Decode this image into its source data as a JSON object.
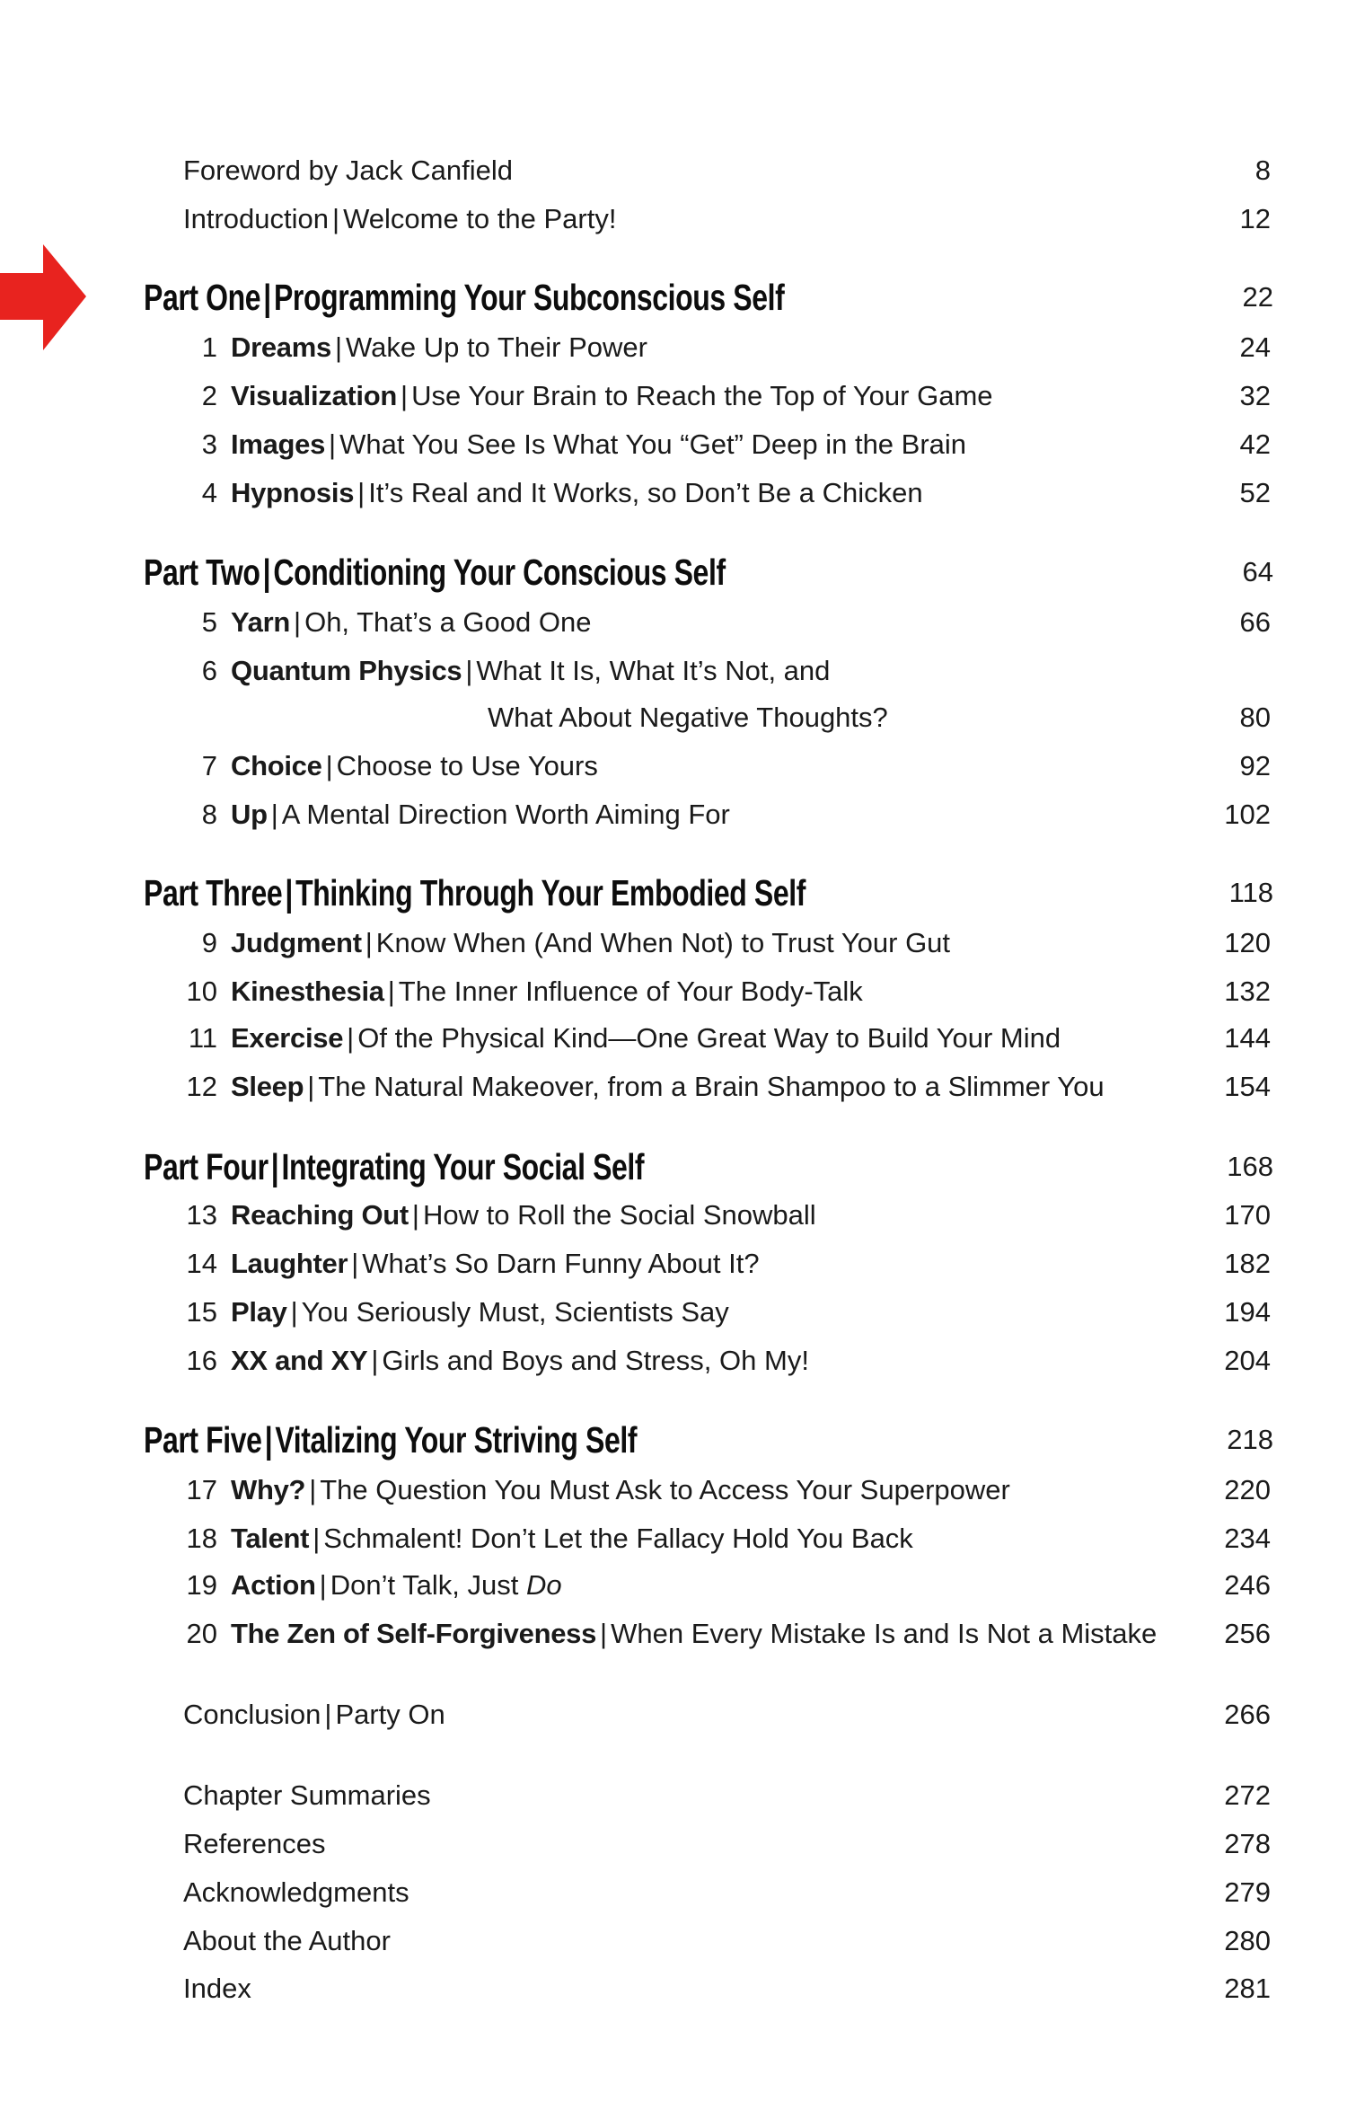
{
  "marker": {
    "icon": "red-arrow-right-icon",
    "color": "#e8231f"
  },
  "toc": [
    {
      "kind": "front",
      "title": "Foreword by Jack Canfield",
      "page": "8"
    },
    {
      "kind": "front",
      "title": "Introduction",
      "subtitle": "Welcome to the Party!",
      "page": "12"
    },
    {
      "kind": "part",
      "title": "Part One",
      "subtitle": "Programming Your Subconscious Self",
      "page": "22"
    },
    {
      "kind": "chap",
      "num": "1",
      "title": "Dreams",
      "subtitle": "Wake Up to Their Power",
      "page": "24"
    },
    {
      "kind": "chap",
      "num": "2",
      "title": "Visualization",
      "subtitle": "Use Your Brain to Reach the Top of Your Game",
      "page": "32"
    },
    {
      "kind": "chap",
      "num": "3",
      "title": "Images",
      "subtitle": "What You See Is What You “Get” Deep in the Brain",
      "page": "42"
    },
    {
      "kind": "chap",
      "num": "4",
      "title": "Hypnosis",
      "subtitle": "It’s Real and It Works, so Don’t Be a Chicken",
      "page": "52"
    },
    {
      "kind": "part",
      "title": "Part Two",
      "subtitle": "Conditioning Your Conscious Self",
      "page": "64"
    },
    {
      "kind": "chap",
      "num": "5",
      "title": "Yarn",
      "subtitle": "Oh, That’s a Good One",
      "page": "66"
    },
    {
      "kind": "chap",
      "num": "6",
      "title": "Quantum Physics",
      "subtitle": "What It Is, What It’s Not, and"
    },
    {
      "kind": "cont",
      "title": "What About Negative Thoughts?",
      "page": "80"
    },
    {
      "kind": "chap",
      "num": "7",
      "title": "Choice",
      "subtitle": "Choose to Use Yours",
      "page": "92"
    },
    {
      "kind": "chap",
      "num": "8",
      "title": "Up",
      "subtitle": "A Mental Direction Worth Aiming For",
      "page": "102"
    },
    {
      "kind": "part",
      "title": "Part Three",
      "subtitle": "Thinking Through Your Embodied Self",
      "page": "118"
    },
    {
      "kind": "chap",
      "num": "9",
      "title": "Judgment",
      "subtitle": "Know When (And When Not) to Trust Your Gut",
      "page": "120"
    },
    {
      "kind": "chap",
      "num": "10",
      "title": "Kinesthesia",
      "subtitle": "The Inner Influence of Your Body-Talk",
      "page": "132"
    },
    {
      "kind": "chap",
      "num": "11",
      "title": "Exercise",
      "subtitle": "Of the Physical Kind—One Great Way to Build Your Mind",
      "page": "144"
    },
    {
      "kind": "chap",
      "num": "12",
      "title": "Sleep",
      "subtitle": "The Natural Makeover, from a Brain Shampoo to a Slimmer You",
      "page": "154"
    },
    {
      "kind": "part",
      "title": "Part Four",
      "subtitle": "Integrating Your Social Self",
      "page": "168"
    },
    {
      "kind": "chap",
      "num": "13",
      "title": "Reaching Out",
      "subtitle": "How to Roll the Social Snowball",
      "page": "170"
    },
    {
      "kind": "chap",
      "num": "14",
      "title": "Laughter",
      "subtitle": "What’s So Darn Funny About It?",
      "page": "182"
    },
    {
      "kind": "chap",
      "num": "15",
      "title": "Play",
      "subtitle": "You Seriously Must, Scientists Say",
      "page": "194"
    },
    {
      "kind": "chap",
      "num": "16",
      "title": "XX and XY",
      "subtitle": "Girls and Boys and Stress, Oh My!",
      "page": "204"
    },
    {
      "kind": "part",
      "title": "Part Five",
      "subtitle": "Vitalizing Your Striving Self",
      "page": "218"
    },
    {
      "kind": "chap",
      "num": "17",
      "title": "Why?",
      "subtitle": "The Question You Must Ask to Access Your Superpower",
      "page": "220"
    },
    {
      "kind": "chap",
      "num": "18",
      "title": "Talent",
      "subtitle": "Schmalent! Don’t Let the Fallacy Hold You Back",
      "page": "234"
    },
    {
      "kind": "chap",
      "num": "19",
      "title": "Action",
      "subtitle": "Don’t Talk, Just ",
      "subtitle_italic": "Do",
      "page": "246"
    },
    {
      "kind": "chap",
      "num": "20",
      "title": "The Zen of Self-Forgiveness",
      "subtitle": "When Every Mistake Is and Is Not a Mistake",
      "page": "256"
    },
    {
      "kind": "front",
      "title": "Conclusion",
      "subtitle": "Party On",
      "page": "266"
    },
    {
      "kind": "front",
      "title": "Chapter Summaries",
      "page": "272"
    },
    {
      "kind": "front",
      "title": "References",
      "page": "278"
    },
    {
      "kind": "front",
      "title": "Acknowledgments",
      "page": "279"
    },
    {
      "kind": "front",
      "title": "About the Author",
      "page": "280"
    },
    {
      "kind": "front",
      "title": "Index",
      "page": "281"
    }
  ]
}
